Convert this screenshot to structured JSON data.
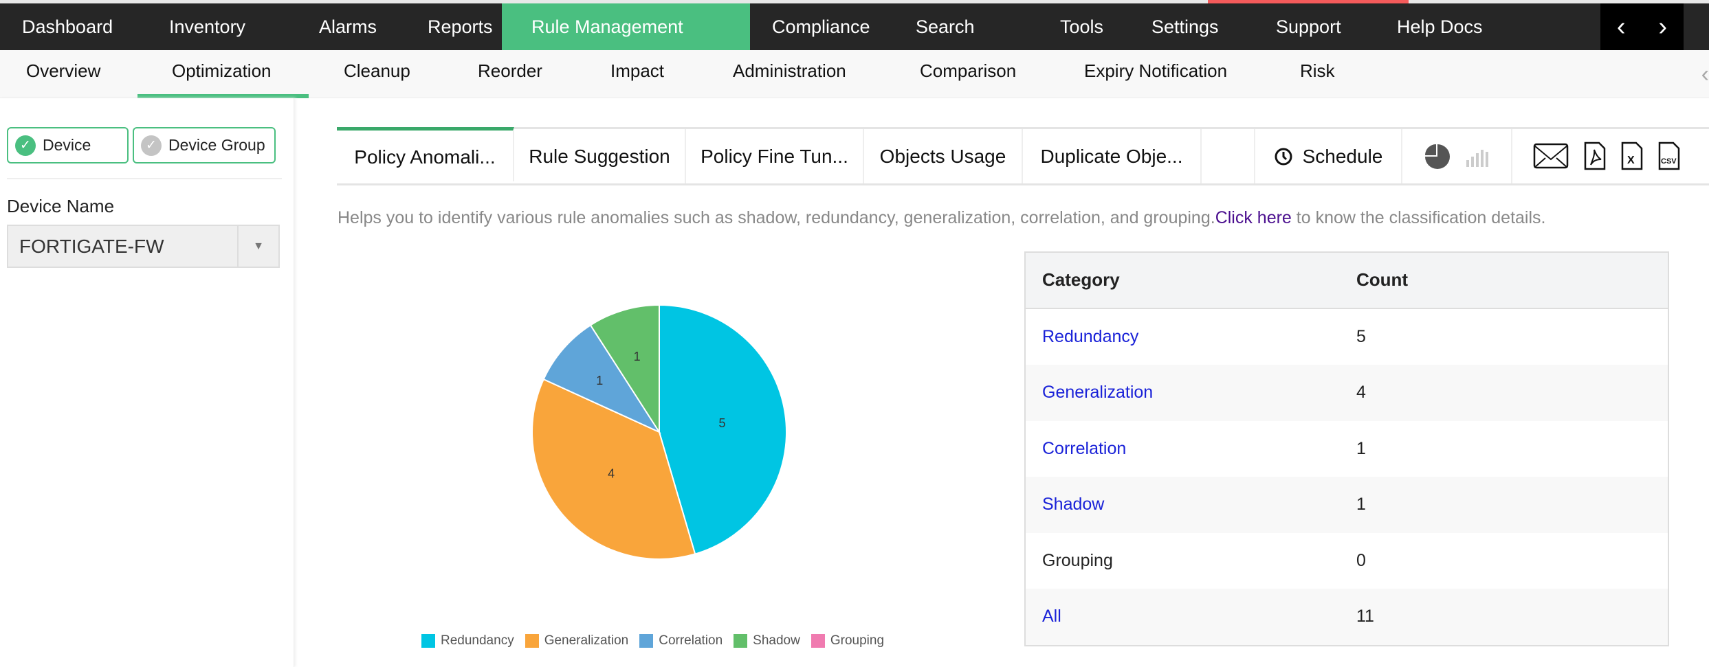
{
  "top_nav": {
    "items": [
      "Dashboard",
      "Inventory",
      "Alarms",
      "Reports",
      "Rule Management",
      "Compliance",
      "Search",
      "Tools",
      "Settings",
      "Support",
      "Help Docs"
    ],
    "active": "Rule Management",
    "prev_icon": "chevron-left-icon",
    "next_icon": "chevron-right-icon"
  },
  "sub_nav": {
    "items": [
      "Overview",
      "Optimization",
      "Cleanup",
      "Reorder",
      "Impact",
      "Administration",
      "Comparison",
      "Expiry Notification",
      "Risk"
    ],
    "active": "Optimization"
  },
  "sidebar": {
    "device_label": "Device",
    "device_group_label": "Device Group",
    "device_name_label": "Device Name",
    "device_selected": "FORTIGATE-FW"
  },
  "tabs": {
    "items": [
      "Policy Anomali...",
      "Rule Suggestion",
      "Policy Fine Tun...",
      "Objects Usage",
      "Duplicate Obje..."
    ],
    "active": "Policy Anomali...",
    "schedule_label": "Schedule"
  },
  "description": {
    "text": "Helps you to identify various rule anomalies such as shadow, redundancy, generalization, correlation, and grouping.",
    "link": "Click here",
    "suffix": " to know the classification details."
  },
  "table": {
    "headers": [
      "Category",
      "Count"
    ],
    "rows": [
      {
        "category": "Redundancy",
        "count": "5",
        "link": true
      },
      {
        "category": "Generalization",
        "count": "4",
        "link": true
      },
      {
        "category": "Correlation",
        "count": "1",
        "link": true
      },
      {
        "category": "Shadow",
        "count": "1",
        "link": true
      },
      {
        "category": "Grouping",
        "count": "0",
        "link": false
      },
      {
        "category": "All",
        "count": "11",
        "link": true
      }
    ]
  },
  "colors": {
    "accent": "#4abf80",
    "nav_bg": "#262626"
  },
  "chart_data": {
    "type": "pie",
    "categories": [
      "Redundancy",
      "Generalization",
      "Correlation",
      "Shadow",
      "Grouping"
    ],
    "values": [
      5,
      4,
      1,
      1,
      0
    ],
    "colors": [
      "#00c5e3",
      "#f9a53b",
      "#5fa5d9",
      "#62bf6a",
      "#f07bb0"
    ],
    "legend": "bottom"
  }
}
